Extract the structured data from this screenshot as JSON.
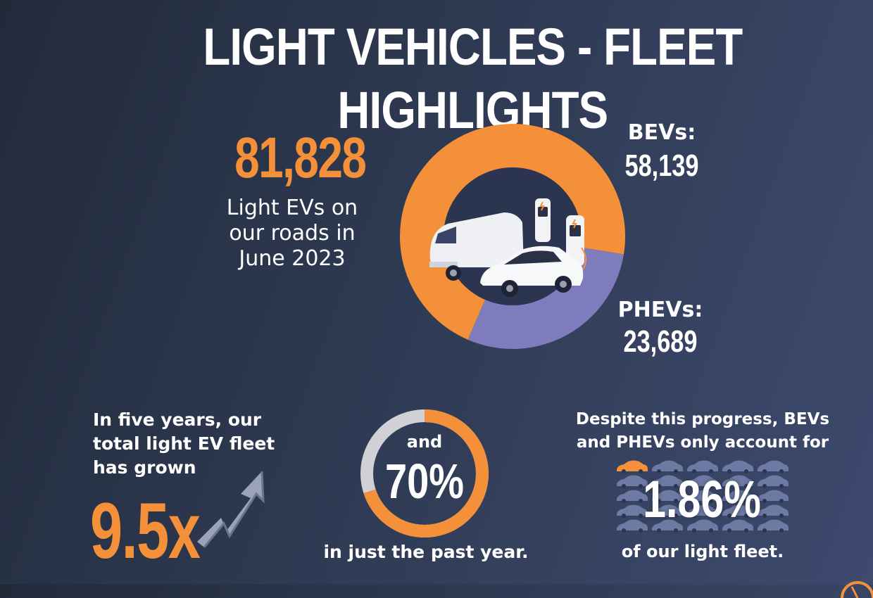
{
  "title": "LIGHT VEHICLES - FLEET HIGHLIGHTS",
  "total": {
    "value": "81,828",
    "label_lines": [
      "Light EVs on",
      "our roads in",
      "June 2023"
    ]
  },
  "chart_data": {
    "type": "pie",
    "categories": [
      "BEVs:",
      "PHEVs:"
    ],
    "values": [
      58139,
      23689
    ],
    "value_labels": [
      "58,139",
      "23,689"
    ],
    "colors": [
      "#f4903a",
      "#7e7cbd"
    ],
    "hole": true
  },
  "growth": {
    "text_lines": [
      "In five years, our",
      "total light EV fleet",
      "has grown"
    ],
    "value": "9.5x"
  },
  "yearly": {
    "before": "and",
    "value": "70%",
    "fraction": 0.7,
    "after": "in just the past year."
  },
  "share": {
    "text_lines": [
      "Despite this progress, BEVs",
      "and PHEVs only account for"
    ],
    "value": "1.86%",
    "after": "of our light fleet."
  },
  "colors": {
    "accent": "#f4903a",
    "phev": "#7e7cbd",
    "ring_track": "#d0d0d6",
    "car_icon": "#6d7aa3"
  },
  "icons": [
    "electric-van-icon",
    "electric-car-icon",
    "charging-station-icon",
    "growth-arrow-icon",
    "car-grid-icon",
    "logo-icon"
  ]
}
